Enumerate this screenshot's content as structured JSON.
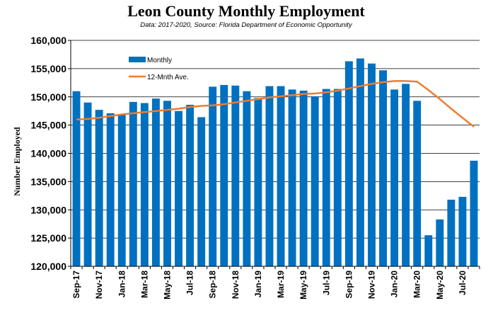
{
  "chart_data": {
    "type": "bar",
    "title": "Leon County Monthly Employment",
    "subtitle": "Data: 2017-2020, Source: Florida Department of Economic Opportunity",
    "ylabel": "Number Employed",
    "xlabel": "",
    "ylim": [
      120000,
      160000
    ],
    "yticks": [
      "120,000",
      "125,000",
      "130,000",
      "135,000",
      "140,000",
      "145,000",
      "150,000",
      "155,000",
      "160,000"
    ],
    "ytick_values": [
      120000,
      125000,
      130000,
      135000,
      140000,
      145000,
      150000,
      155000,
      160000
    ],
    "grid": true,
    "legend_position": "top-left",
    "categories": [
      "Sep-17",
      "Oct-17",
      "Nov-17",
      "Dec-17",
      "Jan-18",
      "Feb-18",
      "Mar-18",
      "Apr-18",
      "May-18",
      "Jun-18",
      "Jul-18",
      "Aug-18",
      "Sep-18",
      "Oct-18",
      "Nov-18",
      "Dec-18",
      "Jan-19",
      "Feb-19",
      "Mar-19",
      "Apr-19",
      "May-19",
      "Jun-19",
      "Jul-19",
      "Aug-19",
      "Sep-19",
      "Oct-19",
      "Nov-19",
      "Dec-19",
      "Jan-20",
      "Feb-20",
      "Mar-20",
      "Apr-20",
      "May-20",
      "Jun-20",
      "Jul-20",
      "Aug-20"
    ],
    "tick_labels": [
      "Sep-17",
      "",
      "Nov-17",
      "",
      "Jan-18",
      "",
      "Mar-18",
      "",
      "May-18",
      "",
      "Jul-18",
      "",
      "Sep-18",
      "",
      "Nov-18",
      "",
      "Jan-19",
      "",
      "Mar-19",
      "",
      "May-19",
      "",
      "Jul-19",
      "",
      "Sep-19",
      "",
      "Nov-19",
      "",
      "Jan-20",
      "",
      "Mar-20",
      "",
      "May-20",
      "",
      "Jul-20",
      ""
    ],
    "series": [
      {
        "name": "Monthly",
        "type": "bar",
        "color": "#0070c0",
        "values": [
          151000,
          149000,
          147700,
          147100,
          146900,
          149100,
          148900,
          149700,
          149300,
          147500,
          148600,
          146400,
          151800,
          152100,
          152000,
          151000,
          149800,
          151900,
          151900,
          151300,
          151100,
          150100,
          151400,
          151400,
          156300,
          156800,
          155900,
          154700,
          151300,
          152300,
          149300,
          125500,
          128300,
          131800,
          132300,
          138700
        ]
      },
      {
        "name": "12-Mnth Ave.",
        "type": "line",
        "color": "#ed7d31",
        "values": [
          146000,
          146100,
          146300,
          146600,
          146900,
          147100,
          147300,
          147500,
          147700,
          147900,
          148200,
          148400,
          148500,
          148700,
          149000,
          149300,
          149600,
          149900,
          150100,
          150300,
          150500,
          150600,
          150800,
          151100,
          151500,
          151900,
          152300,
          152600,
          152800,
          152800,
          152700,
          151200,
          149600,
          147900,
          146300,
          144700
        ]
      }
    ]
  }
}
